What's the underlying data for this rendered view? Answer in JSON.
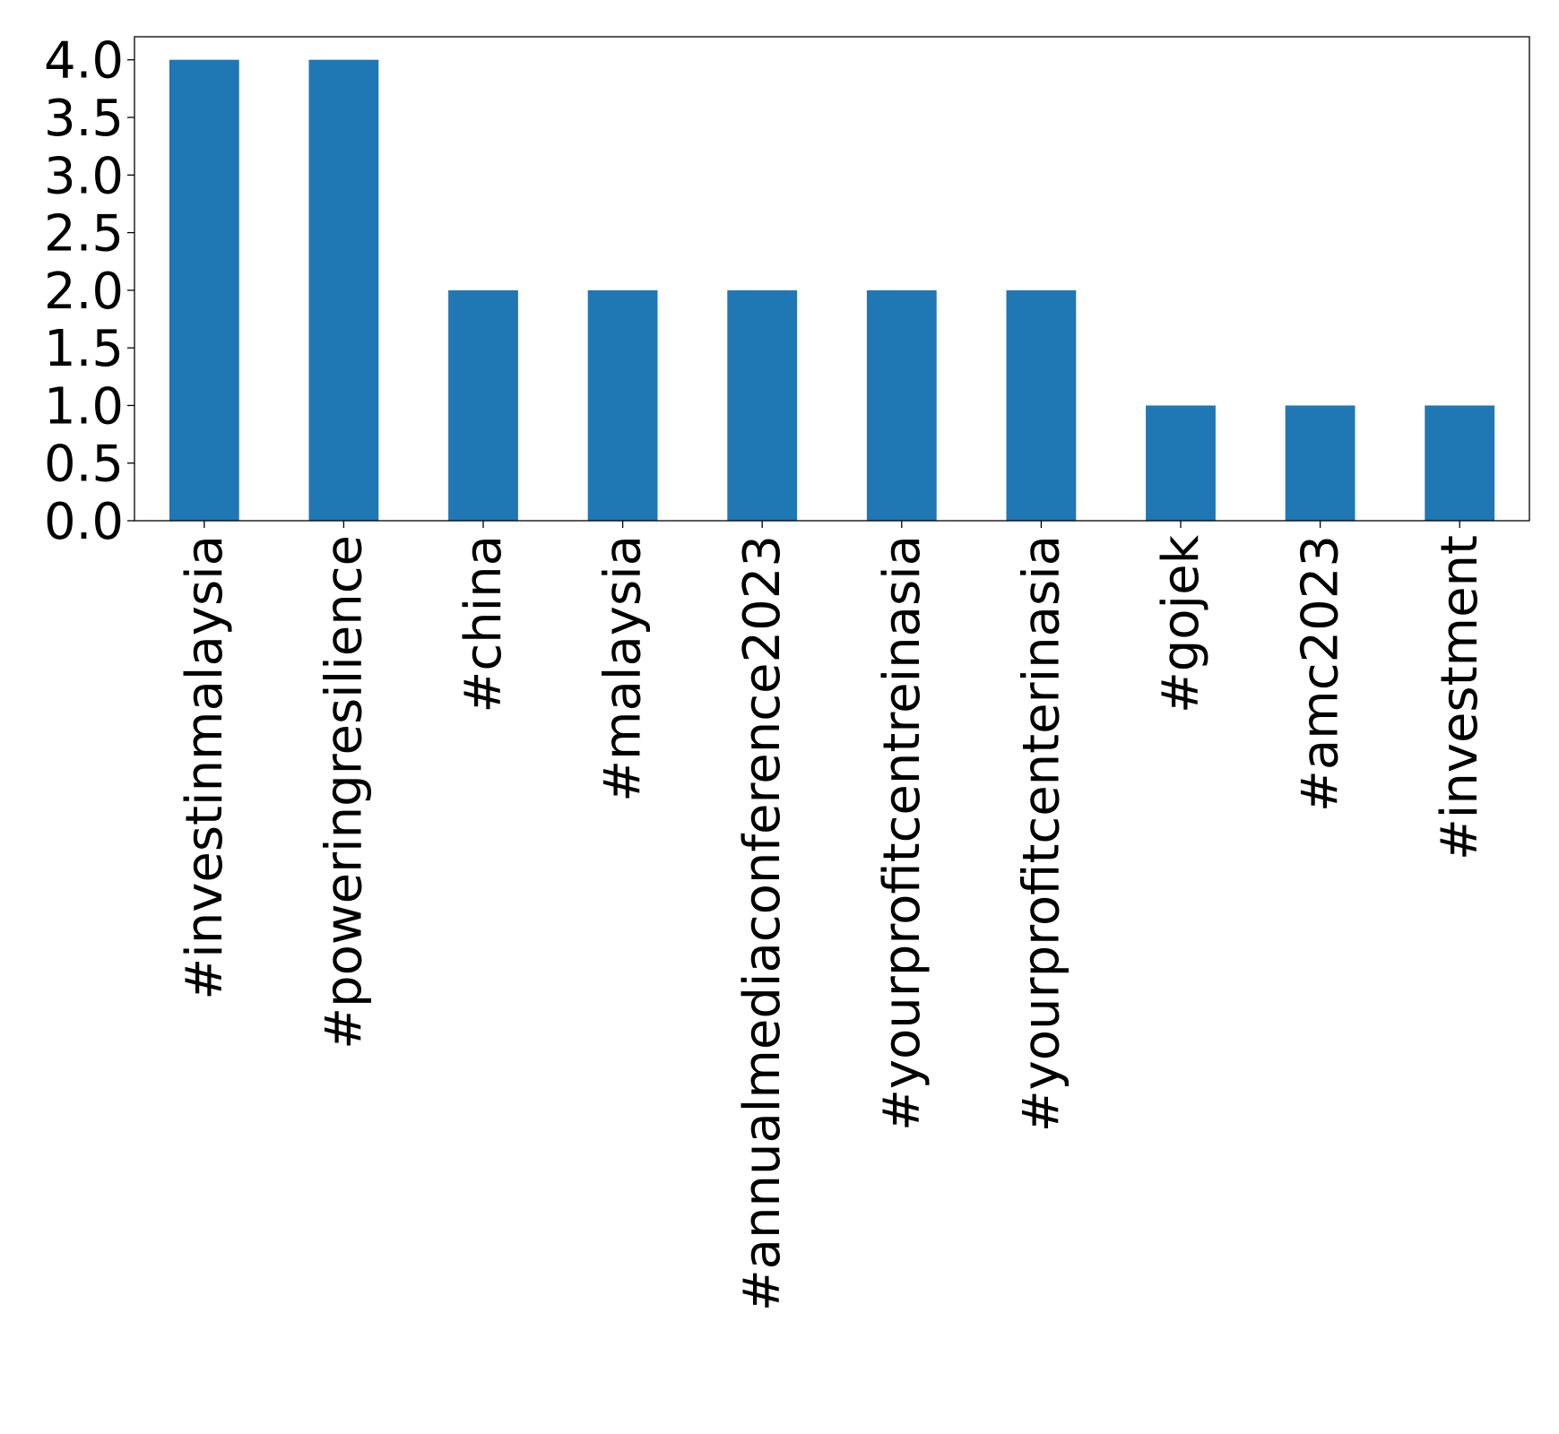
{
  "chart_data": {
    "type": "bar",
    "title": "",
    "xlabel": "",
    "ylabel": "",
    "categories": [
      "#investinmalaysia",
      "#poweringresilience",
      "#china",
      "#malaysia",
      "#annualmediaconference2023",
      "#yourprofitcentreinasia",
      "#yourprofitcenterinasia",
      "#gojek",
      "#amc2023",
      "#investment"
    ],
    "values": [
      4,
      4,
      2,
      2,
      2,
      2,
      2,
      1,
      1,
      1
    ],
    "ylim": [
      0,
      4.2
    ],
    "yticks": [
      0.0,
      0.5,
      1.0,
      1.5,
      2.0,
      2.5,
      3.0,
      3.5,
      4.0
    ],
    "ytick_labels": [
      "0.0",
      "0.5",
      "1.0",
      "1.5",
      "2.0",
      "2.5",
      "3.0",
      "3.5",
      "4.0"
    ],
    "grid": false,
    "legend": "none",
    "bar_color": "#1f77b4"
  }
}
